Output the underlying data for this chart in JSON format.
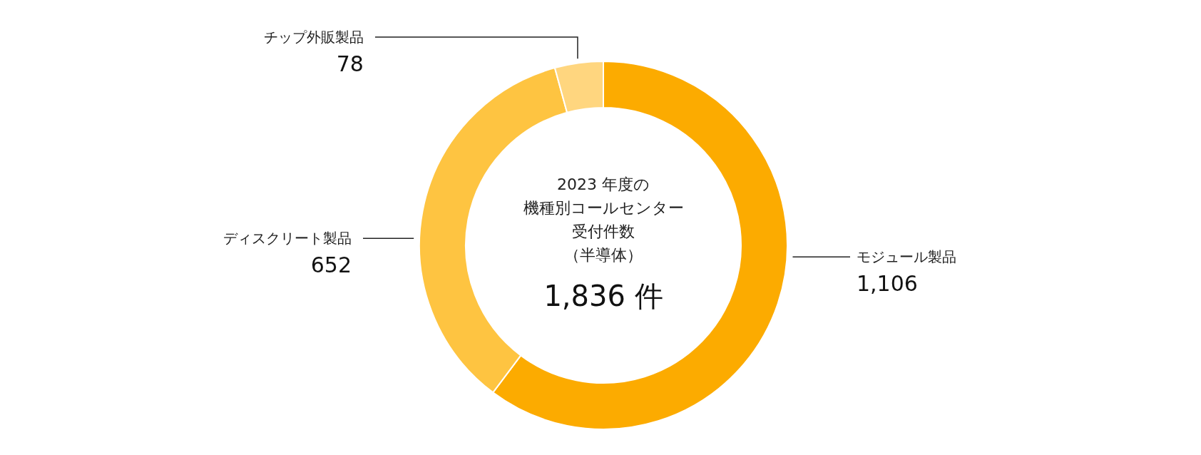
{
  "chart_data": {
    "type": "donut",
    "annotations": [
      "2023 年度の",
      "機種別コールセンター",
      "受付件数",
      "（半導体）",
      "1,836 件"
    ],
    "categories": [
      "モジュール製品",
      "ディスクリート製品",
      "チップ外販製品"
    ],
    "values": [
      1106,
      652,
      78
    ],
    "colors": [
      "#fcab00",
      "#fec441",
      "#ffd67f"
    ],
    "value_labels": [
      "1,106",
      "652",
      "78"
    ]
  }
}
